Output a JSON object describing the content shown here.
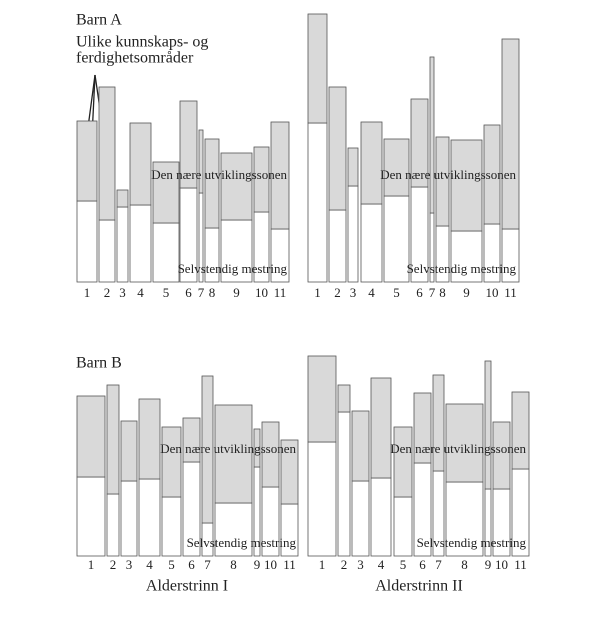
{
  "chart_data": [
    {
      "type": "bar",
      "stacked": true,
      "title": "Barn A",
      "annotation": [
        "Ulike kunnskaps- og",
        "ferdighetsområder"
      ],
      "categories": [
        "1",
        "2",
        "3",
        "4",
        "5",
        "6",
        "7",
        "8",
        "9",
        "10",
        "11"
      ],
      "series": [
        {
          "name": "Selvstendig mestring",
          "color": "#ffffff",
          "values": [
            81,
            62,
            75,
            77,
            59,
            94,
            89,
            54,
            62,
            70,
            53
          ]
        },
        {
          "name": "Den nære utviklingssonen",
          "color": "#d9d9d9",
          "values": [
            80,
            133,
            17,
            82,
            61,
            87,
            63,
            89,
            67,
            65,
            107
          ]
        }
      ],
      "ylim": [
        0,
        270
      ]
    },
    {
      "type": "bar",
      "stacked": true,
      "categories": [
        "1",
        "2",
        "3",
        "4",
        "5",
        "6",
        "7",
        "8",
        "9",
        "10",
        "11"
      ],
      "series": [
        {
          "name": "Selvstendig mestring",
          "color": "#ffffff",
          "values": [
            159,
            72,
            96,
            78,
            86,
            95,
            69,
            56,
            51,
            58,
            53
          ]
        },
        {
          "name": "Den nære utviklingssonen",
          "color": "#d9d9d9",
          "values": [
            109,
            123,
            38,
            82,
            57,
            88,
            156,
            89,
            91,
            99,
            190
          ]
        }
      ],
      "ylim": [
        0,
        270
      ]
    },
    {
      "type": "bar",
      "stacked": true,
      "title": "Barn B",
      "xlabel": "Alderstrinn I",
      "categories": [
        "1",
        "2",
        "3",
        "4",
        "5",
        "6",
        "7",
        "8",
        "9",
        "10",
        "11"
      ],
      "series": [
        {
          "name": "Selvstendig mestring",
          "color": "#ffffff",
          "values": [
            79,
            62,
            75,
            77,
            59,
            94,
            33,
            53,
            89,
            69,
            52
          ]
        },
        {
          "name": "Den nære utviklingssonen",
          "color": "#d9d9d9",
          "values": [
            81,
            109,
            60,
            80,
            70,
            44,
            147,
            98,
            38,
            65,
            64
          ]
        }
      ],
      "ylim": [
        0,
        270
      ]
    },
    {
      "type": "bar",
      "stacked": true,
      "xlabel": "Alderstrinn II",
      "categories": [
        "1",
        "2",
        "3",
        "4",
        "5",
        "6",
        "7",
        "8",
        "9",
        "10",
        "11"
      ],
      "series": [
        {
          "name": "Selvstendig mestring",
          "color": "#ffffff",
          "values": [
            114,
            144,
            75,
            78,
            59,
            93,
            85,
            74,
            67,
            67,
            87
          ]
        },
        {
          "name": "Den nære utviklingssonen",
          "color": "#d9d9d9",
          "values": [
            86,
            27,
            70,
            100,
            70,
            70,
            96,
            78,
            128,
            67,
            77
          ]
        }
      ],
      "ylim": [
        0,
        270
      ]
    }
  ]
}
